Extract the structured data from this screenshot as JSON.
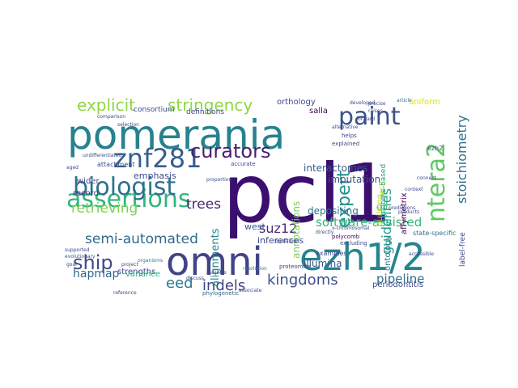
{
  "word_cloud": {
    "words": [
      {
        "text": "pcl1",
        "color": "#3b0f6f"
      },
      {
        "text": "pomerania",
        "color": "#26828e"
      },
      {
        "text": "omni",
        "color": "#414487"
      },
      {
        "text": "ezh1/2",
        "color": "#25858e"
      },
      {
        "text": "assertions",
        "color": "#31b57b"
      },
      {
        "text": "biologist",
        "color": "#2c728e"
      },
      {
        "text": "znf281",
        "color": "#35608d"
      },
      {
        "text": "curators",
        "color": "#481f70"
      },
      {
        "text": "paint",
        "color": "#3b528b"
      },
      {
        "text": "ntera2",
        "color": "#5ec962"
      },
      {
        "text": "ship",
        "color": "#3e4a89"
      },
      {
        "text": "explicit",
        "color": "#90d743"
      },
      {
        "text": "stringency",
        "color": "#8fd744"
      },
      {
        "text": "kingdoms",
        "color": "#3b528b"
      },
      {
        "text": "expert",
        "color": "#21908d"
      },
      {
        "text": "indels",
        "color": "#414487"
      },
      {
        "text": "eed",
        "color": "#2a788e"
      },
      {
        "text": "semi-automated",
        "color": "#30698e"
      },
      {
        "text": "software-assisted",
        "color": "#35b779"
      },
      {
        "text": "stoichiometry",
        "color": "#2c728e"
      },
      {
        "text": "retrieving",
        "color": "#7ad151"
      },
      {
        "text": "trees",
        "color": "#482878"
      },
      {
        "text": "guidelines",
        "color": "#1f9e89"
      },
      {
        "text": "suz12",
        "color": "#472d7b"
      },
      {
        "text": "pipeline",
        "color": "#2e6e8e"
      },
      {
        "text": "hapmap",
        "color": "#31688e"
      },
      {
        "text": "interactomes",
        "color": "#38598c"
      },
      {
        "text": "imputation",
        "color": "#3e4c8a"
      },
      {
        "text": "depositing",
        "color": "#2c738e"
      },
      {
        "text": "dil",
        "color": "#44bf70"
      },
      {
        "text": "illumina",
        "color": "#3b528b"
      },
      {
        "text": "alignments",
        "color": "#23888e"
      },
      {
        "text": "annotations",
        "color": "#7ad151"
      },
      {
        "text": "emphasis",
        "color": "#3e4a89"
      },
      {
        "text": "inferences",
        "color": "#3e4989"
      },
      {
        "text": "west",
        "color": "#38598c"
      },
      {
        "text": "strengths",
        "color": "#3f4788"
      },
      {
        "text": "variance",
        "color": "#28ae80"
      },
      {
        "text": "periodontitis",
        "color": "#3e4c8a"
      },
      {
        "text": "affymetrix",
        "color": "#440154"
      },
      {
        "text": "ontology",
        "color": "#2a788e"
      },
      {
        "text": "orthology",
        "color": "#3e4c8a"
      },
      {
        "text": "salla",
        "color": "#440154"
      },
      {
        "text": "record",
        "color": "#46337e"
      },
      {
        "text": "wider",
        "color": "#3f4788"
      },
      {
        "text": "building",
        "color": "#b5de2b"
      },
      {
        "text": "genome-based",
        "color": "#20a486"
      },
      {
        "text": "prc2",
        "color": "#b5de2b"
      },
      {
        "text": "label-free",
        "color": "#3e4a89"
      },
      {
        "text": "state-specific",
        "color": "#2c728e"
      },
      {
        "text": "uniform",
        "color": "#d8e219"
      },
      {
        "text": "consortium",
        "color": "#3e4a89"
      },
      {
        "text": "definitions",
        "color": "#3e4a89"
      },
      {
        "text": "attachment",
        "color": "#3e4c8a"
      },
      {
        "text": "examples",
        "color": "#3e4989"
      },
      {
        "text": "proteomics",
        "color": "#3e4989"
      },
      {
        "text": "phylogenetic",
        "color": "#31688e"
      },
      {
        "text": "ezh2",
        "color": "#3b528b"
      },
      {
        "text": "helps",
        "color": "#3e4989"
      },
      {
        "text": "explained",
        "color": "#3e4989"
      },
      {
        "text": "polycomb",
        "color": "#440154"
      },
      {
        "text": "accurate",
        "color": "#3e4989"
      },
      {
        "text": "excluding",
        "color": "#3e4989"
      },
      {
        "text": "x-chromosomal",
        "color": "#3e4989"
      },
      {
        "text": "organisms",
        "color": "#2a788e"
      },
      {
        "text": "resolution",
        "color": "#2a788e"
      },
      {
        "text": "associate",
        "color": "#3e4989"
      },
      {
        "text": "evolutionary",
        "color": "#3b528b"
      },
      {
        "text": "supported",
        "color": "#3e4989"
      },
      {
        "text": "directly",
        "color": "#3e4989"
      },
      {
        "text": "predictions",
        "color": "#3e4989"
      },
      {
        "text": "products",
        "color": "#3e4989"
      },
      {
        "text": "article",
        "color": "#2c728e"
      },
      {
        "text": "precise",
        "color": "#3e4989"
      },
      {
        "text": "raises",
        "color": "#3e4989"
      },
      {
        "text": "forward",
        "color": "#3e4989"
      },
      {
        "text": "reference",
        "color": "#3e4989"
      },
      {
        "text": "project",
        "color": "#3e4989"
      },
      {
        "text": "subjects",
        "color": "#3e4989"
      },
      {
        "text": "proportion",
        "color": "#3e4989"
      },
      {
        "text": "alternative",
        "color": "#3e4989"
      },
      {
        "text": "selection",
        "color": "#3e4989"
      },
      {
        "text": "aged",
        "color": "#3e4989"
      },
      {
        "text": "goal",
        "color": "#3e4989"
      },
      {
        "text": "undifferentiated",
        "color": "#3e4989"
      },
      {
        "text": "comparison",
        "color": "#3e4989"
      },
      {
        "text": "developed",
        "color": "#3e4989"
      },
      {
        "text": "question",
        "color": "#3e4989"
      },
      {
        "text": "connect",
        "color": "#3e4989"
      },
      {
        "text": "discuss",
        "color": "#3e4989"
      },
      {
        "text": "context",
        "color": "#3e4989"
      },
      {
        "text": "accessible",
        "color": "#3e4989"
      }
    ]
  }
}
